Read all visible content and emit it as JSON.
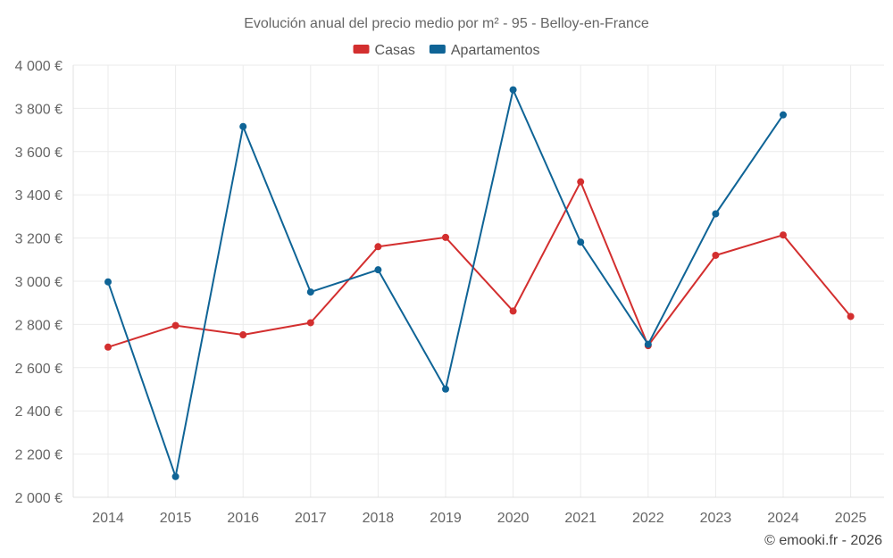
{
  "chart_data": {
    "type": "line",
    "title": "Evolución anual del precio medio por m² - 95 - Belloy-en-France",
    "categories": [
      "2014",
      "2015",
      "2016",
      "2017",
      "2018",
      "2019",
      "2020",
      "2021",
      "2022",
      "2023",
      "2024",
      "2025"
    ],
    "series": [
      {
        "name": "Casas",
        "color": "#d32f2f",
        "values": [
          2695,
          2795,
          2752,
          2808,
          3160,
          3203,
          2862,
          3460,
          2702,
          3120,
          3214,
          2837
        ]
      },
      {
        "name": "Apartamentos",
        "color": "#0f6496",
        "values": [
          2997,
          2096,
          3716,
          2950,
          3053,
          2501,
          3886,
          3181,
          2708,
          3312,
          3770,
          null
        ]
      }
    ],
    "ylim": [
      2000,
      4000
    ],
    "yticks": [
      2000,
      2200,
      2400,
      2600,
      2800,
      3000,
      3200,
      3400,
      3600,
      3800,
      4000
    ],
    "ytick_labels": [
      "2 000 €",
      "2 200 €",
      "2 400 €",
      "2 600 €",
      "2 800 €",
      "3 000 €",
      "3 200 €",
      "3 400 €",
      "3 600 €",
      "3 800 €",
      "4 000 €"
    ],
    "legend_position": "top-center",
    "grid": true
  },
  "footer": {
    "text": "© emooki.fr - 2026"
  }
}
